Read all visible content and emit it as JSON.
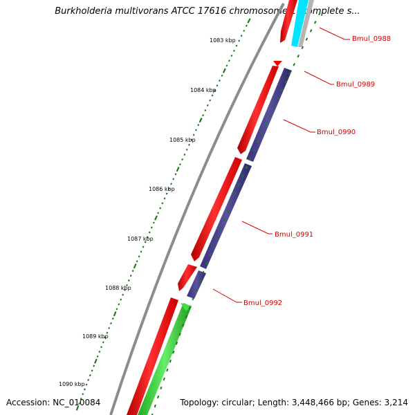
{
  "title": "Burkholderia multivorans ATCC 17616 chromosome 1, complete s...",
  "accession": "Accession: NC_010084",
  "summary": "Topology: circular; Length: 3,448,466 bp; Genes: 3,214",
  "scale_labels": [
    "1083 kbp",
    "1084 kbp",
    "1085 kbp",
    "1086 kbp",
    "1087 kbp",
    "1088 kbp",
    "1089 kbp",
    "1090 kbp"
  ],
  "gene_labels": [
    "Bmul_0988",
    "Bmul_0989",
    "Bmul_0990",
    "Bmul_0991",
    "Bmul_0992"
  ],
  "colors": {
    "backbone": "#8c8c8c",
    "forward_cds": "#ff0000",
    "reverse_cds": "#4a3f8f",
    "rna": "#33cc33",
    "other": "#00e5ff",
    "tick": "#1a7a1a",
    "label": "#d40000"
  }
}
